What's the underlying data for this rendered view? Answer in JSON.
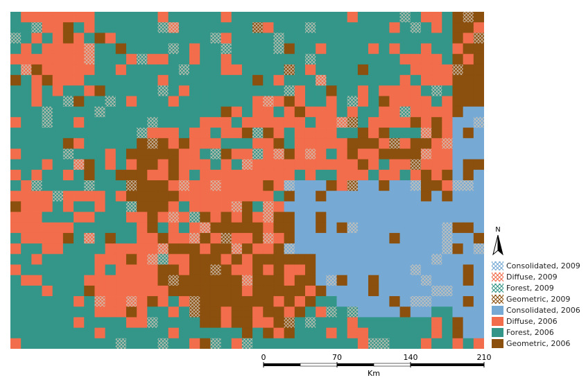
{
  "legend": {
    "items": [
      {
        "label": "Consolidated, 2009",
        "color": "#76aad4",
        "hatched": true
      },
      {
        "label": "Diffuse, 2009",
        "color": "#f26d4c",
        "hatched": true
      },
      {
        "label": "Forest, 2009",
        "color": "#339688",
        "hatched": true
      },
      {
        "label": "Geometric, 2009",
        "color": "#8b4f0e",
        "hatched": true
      },
      {
        "label": "Consolidated, 2006",
        "color": "#76aad4",
        "hatched": false
      },
      {
        "label": "Diffuse, 2006",
        "color": "#f26d4c",
        "hatched": false
      },
      {
        "label": "Forest, 2006",
        "color": "#339688",
        "hatched": false
      },
      {
        "label": "Geometric, 2006",
        "color": "#8b4f0e",
        "hatched": false
      }
    ]
  },
  "north_arrow": {
    "label": "N"
  },
  "scale": {
    "ticks": [
      "0",
      "70",
      "140",
      "210"
    ],
    "unit": "Km"
  },
  "colors": {
    "consolidated": "#76aad4",
    "diffuse": "#f26d4c",
    "forest": "#339688",
    "geometric": "#8b4f0e"
  }
}
